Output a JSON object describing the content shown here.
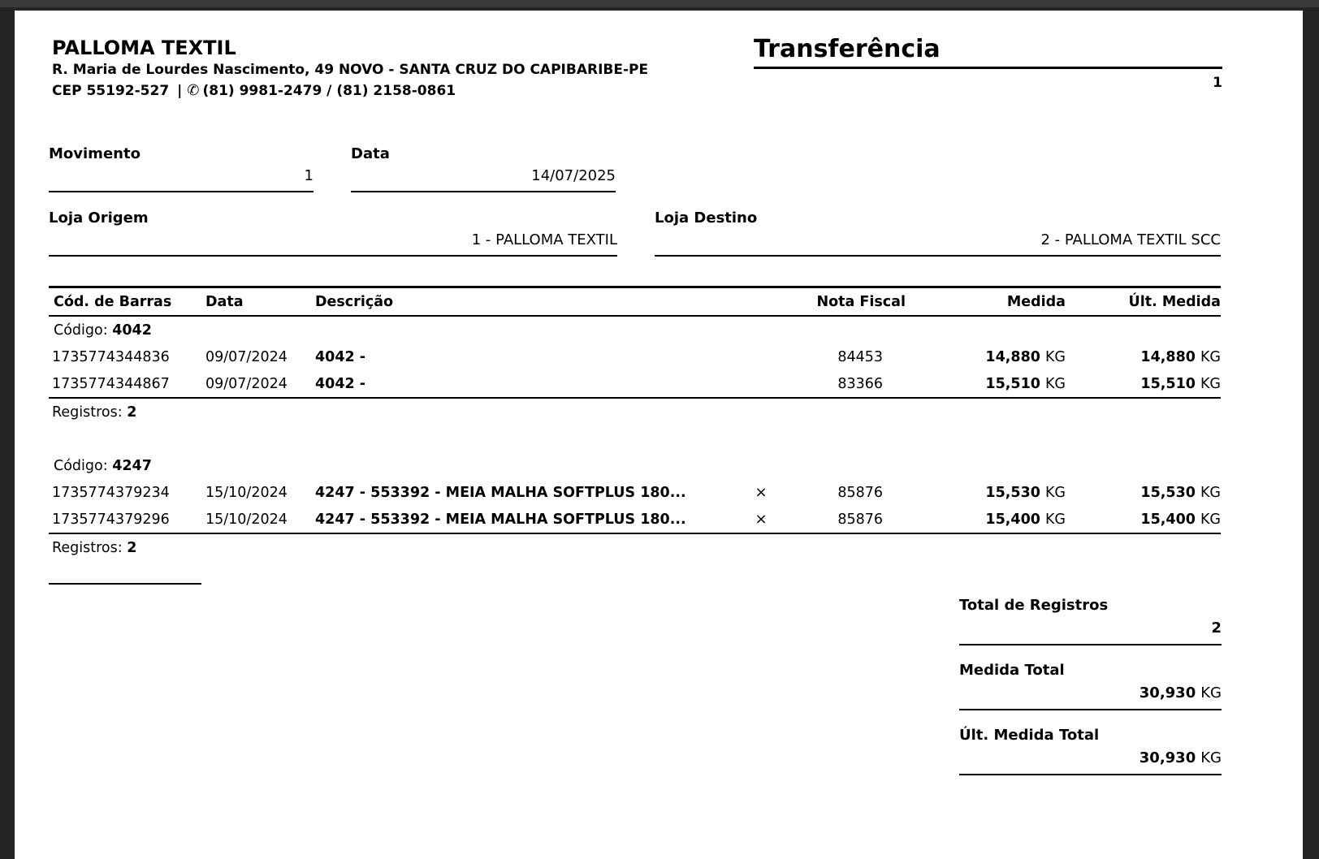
{
  "colors": {
    "canvas_bg": "#242424",
    "top_strip": "#3a3a3a",
    "page_bg": "#ffffff",
    "text": "#000000"
  },
  "company": {
    "name": "PALLOMA TEXTIL",
    "address": "R. Maria de Lourdes Nascimento, 49 NOVO - SANTA CRUZ DO CAPIBARIBE-PE",
    "cep": "CEP 55192-527",
    "separator": "|",
    "phone_icon": "✆",
    "phones": "(81) 9981-2479 / (81) 2158-0861"
  },
  "report": {
    "title": "Transferência",
    "page_number": "1"
  },
  "fields": {
    "movimento": {
      "label": "Movimento",
      "value": "1"
    },
    "data": {
      "label": "Data",
      "value": "14/07/2025"
    },
    "loja_origem": {
      "label": "Loja Origem",
      "value": "1 - PALLOMA TEXTIL"
    },
    "loja_destino": {
      "label": "Loja Destino",
      "value": "2 - PALLOMA TEXTIL SCC"
    }
  },
  "table": {
    "headers": {
      "barcode": "Cód. de Barras",
      "date": "Data",
      "description": "Descrição",
      "nota_fiscal": "Nota Fiscal",
      "medida": "Medida",
      "ult_medida": "Últ. Medida"
    },
    "code_label": "Código:",
    "registros_label": "Registros:",
    "unit": "KG",
    "groups": [
      {
        "code": "4042",
        "registros": "2",
        "rows": [
          {
            "barcode": "1735774344836",
            "date": "09/07/2024",
            "description": "4042 -",
            "x": "",
            "nota_fiscal": "84453",
            "medida": "14,880",
            "ult_medida": "14,880"
          },
          {
            "barcode": "1735774344867",
            "date": "09/07/2024",
            "description": "4042 -",
            "x": "",
            "nota_fiscal": "83366",
            "medida": "15,510",
            "ult_medida": "15,510"
          }
        ]
      },
      {
        "code": "4247",
        "registros": "2",
        "rows": [
          {
            "barcode": "1735774379234",
            "date": "15/10/2024",
            "description": "4247 - 553392 - MEIA MALHA SOFTPLUS 180...",
            "x": "×",
            "nota_fiscal": "85876",
            "medida": "15,530",
            "ult_medida": "15,530"
          },
          {
            "barcode": "1735774379296",
            "date": "15/10/2024",
            "description": "4247 - 553392 - MEIA MALHA SOFTPLUS 180...",
            "x": "×",
            "nota_fiscal": "85876",
            "medida": "15,400",
            "ult_medida": "15,400"
          }
        ]
      }
    ]
  },
  "totals": {
    "total_registros": {
      "label": "Total de Registros",
      "value": "2"
    },
    "medida_total": {
      "label": "Medida Total",
      "value": "30,930",
      "unit": "KG"
    },
    "ult_medida_total": {
      "label": "Últ. Medida Total",
      "value": "30,930",
      "unit": "KG"
    }
  }
}
